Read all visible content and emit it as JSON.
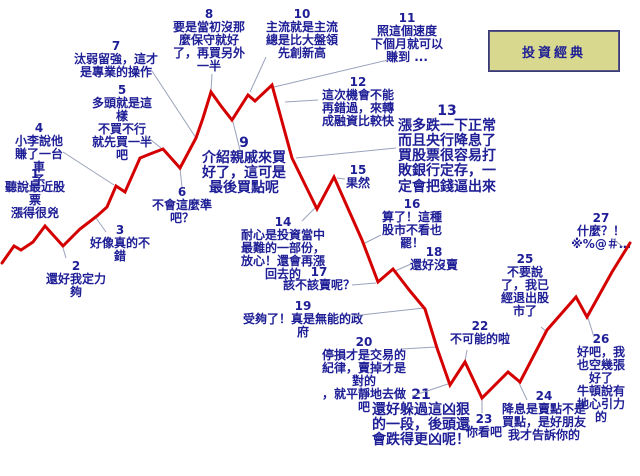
{
  "button": {
    "label": "投資經典"
  },
  "colors": {
    "curve": "#d40000",
    "leader": "#9aa2bc",
    "text": "#1e1e96",
    "button_face": "#d8d88e",
    "button_text": "#1e1e96"
  },
  "curve": {
    "points": [
      [
        2,
        263
      ],
      [
        14,
        246
      ],
      [
        21,
        250
      ],
      [
        33,
        242
      ],
      [
        45,
        226
      ],
      [
        63,
        246
      ],
      [
        80,
        229
      ],
      [
        97,
        216
      ],
      [
        107,
        207
      ],
      [
        116,
        186
      ],
      [
        125,
        192
      ],
      [
        140,
        158
      ],
      [
        150,
        154
      ],
      [
        163,
        149
      ],
      [
        180,
        168
      ],
      [
        196,
        138
      ],
      [
        203,
        118
      ],
      [
        211,
        92
      ],
      [
        221,
        106
      ],
      [
        232,
        120
      ],
      [
        248,
        95
      ],
      [
        255,
        101
      ],
      [
        272,
        85
      ],
      [
        292,
        158
      ],
      [
        317,
        209
      ],
      [
        334,
        177
      ],
      [
        362,
        240
      ],
      [
        378,
        282
      ],
      [
        393,
        269
      ],
      [
        410,
        291
      ],
      [
        425,
        309
      ],
      [
        437,
        348
      ],
      [
        450,
        385
      ],
      [
        465,
        362
      ],
      [
        482,
        398
      ],
      [
        508,
        372
      ],
      [
        520,
        382
      ],
      [
        547,
        330
      ],
      [
        576,
        297
      ],
      [
        587,
        317
      ],
      [
        612,
        272
      ],
      [
        630,
        243
      ]
    ]
  },
  "leaders": [
    [
      66,
      258,
      63,
      248
    ],
    [
      106,
      232,
      96,
      218
    ],
    [
      63,
      152,
      114,
      185
    ],
    [
      146,
      136,
      161,
      148
    ],
    [
      152,
      71,
      196,
      138
    ],
    [
      182,
      187,
      180,
      169
    ],
    [
      212,
      74,
      211,
      91
    ],
    [
      240,
      150,
      233,
      122
    ],
    [
      266,
      57,
      250,
      92
    ],
    [
      388,
      60,
      274,
      87
    ],
    [
      318,
      100,
      285,
      102
    ],
    [
      396,
      148,
      296,
      158
    ],
    [
      302,
      221,
      316,
      207
    ],
    [
      345,
      179,
      337,
      178
    ],
    [
      381,
      235,
      363,
      244
    ],
    [
      352,
      285,
      376,
      283
    ],
    [
      411,
      264,
      395,
      271
    ],
    [
      352,
      316,
      424,
      308
    ],
    [
      402,
      349,
      436,
      347
    ],
    [
      412,
      396,
      448,
      384
    ],
    [
      467,
      350,
      465,
      361
    ],
    [
      482,
      413,
      482,
      400
    ],
    [
      527,
      400,
      519,
      383
    ],
    [
      541,
      327,
      547,
      332
    ],
    [
      594,
      337,
      588,
      318
    ],
    [
      613,
      239,
      623,
      247
    ]
  ],
  "annotations": [
    {
      "num": "1",
      "text": "聽說最近股\n票\n漲得很兇"
    },
    {
      "num": "2",
      "text": "還好我定力\n夠"
    },
    {
      "num": "3",
      "text": "好像真的不\n錯"
    },
    {
      "num": "4",
      "text": "小李說他\n賺了一台車\n子"
    },
    {
      "num": "5",
      "text": "多頭就是這\n樣\n不買不行\n就先買一半\n吧"
    },
    {
      "num": "6",
      "text": "不會這麼準\n吧？"
    },
    {
      "num": "7",
      "text": "汰弱留強，這才\n是專業的操作"
    },
    {
      "num": "8",
      "text": "要是當初沒那\n麼保守就好\n了，再買另外\n一半"
    },
    {
      "num": "9",
      "text": "介紹親戚來買\n好了，這可是\n最後買點呢"
    },
    {
      "num": "10",
      "text": "主流就是主流\n總是比大盤領\n先創新高"
    },
    {
      "num": "11",
      "text": "照這個速度\n下個月就可以\n賺到 ..."
    },
    {
      "num": "12",
      "text": "這次機會不能\n再錯過，來轉\n成融資比較快"
    },
    {
      "num": "13",
      "text": "漲多跌一下正常\n而且央行降息了\n買股票很容易打\n敗銀行定存，一\n定會把錢逼出來"
    },
    {
      "num": "14",
      "text": "耐心是投資當中\n最難的一部份，\n放心！還會再漲\n回去的"
    },
    {
      "num": "15",
      "text": "果然"
    },
    {
      "num": "16",
      "text": "算了！這種\n股市不看也\n罷！"
    },
    {
      "num": "17",
      "text": "該不該賣呢？"
    },
    {
      "num": "18",
      "text": "還好沒賣"
    },
    {
      "num": "19",
      "text": "受夠了！真是無能的政府"
    },
    {
      "num": "20",
      "text": "停損才是交易的\n紀律，賣掉才是\n對的\n，就平靜地去做\n吧"
    },
    {
      "num": "21",
      "text": "還好躲過這凶狠\n的一段，後頭還\n會跌得更凶呢！"
    },
    {
      "num": "22",
      "text": "不可能的啦"
    },
    {
      "num": "23",
      "text": "你看吧"
    },
    {
      "num": "24",
      "text": "降息是賣點不是\n買點，是好朋友\n我才告訴你的"
    },
    {
      "num": "25",
      "text": "不要說\n了，我已\n經退出股\n市了"
    },
    {
      "num": "26",
      "text": "好吧，我\n也空幾張\n好了\n牛頓說有\n地心引力\n的"
    },
    {
      "num": "27",
      "text": "什麼？！\n※%@＃…"
    }
  ]
}
